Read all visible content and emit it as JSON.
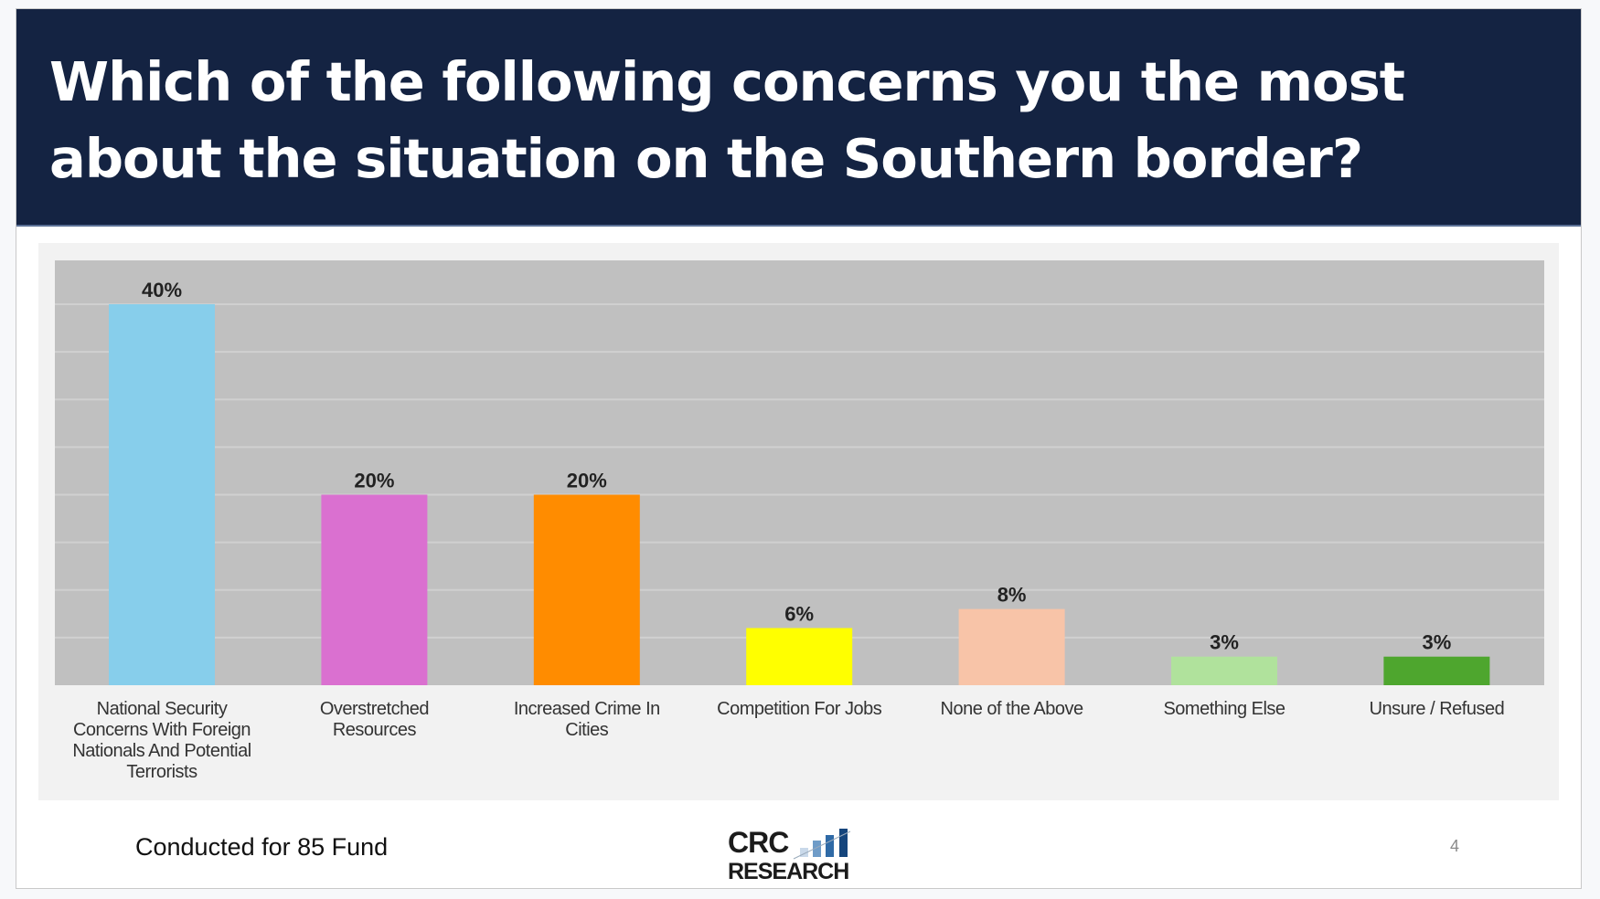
{
  "slide": {
    "title_line1": "Which of the following concerns you the most",
    "title_line2": "about the situation on the Southern border?",
    "footer_note": "Conducted for 85 Fund",
    "page_number": "4",
    "logo": {
      "line1": "CRC",
      "line2": "RESEARCH"
    }
  },
  "chart_data": {
    "type": "bar",
    "title": "Which of the following concerns you the most about the situation on the Southern border?",
    "categories": [
      "National Security Concerns With Foreign Nationals And Potential Terrorists",
      "Overstretched Resources",
      "Increased Crime In Cities",
      "Competition For Jobs",
      "None of the Above",
      "Something Else",
      "Unsure / Refused"
    ],
    "category_lines": [
      [
        "National Security",
        "Concerns With Foreign",
        "Nationals And Potential",
        "Terrorists"
      ],
      [
        "Overstretched",
        "Resources"
      ],
      [
        "Increased Crime In",
        "Cities"
      ],
      [
        "Competition For Jobs"
      ],
      [
        "None of the Above"
      ],
      [
        "Something Else"
      ],
      [
        "Unsure / Refused"
      ]
    ],
    "values": [
      40,
      20,
      20,
      6,
      8,
      3,
      3
    ],
    "data_labels": [
      "40%",
      "20%",
      "20%",
      "6%",
      "8%",
      "3%",
      "3%"
    ],
    "colors": [
      "#87ceeb",
      "#da70d0",
      "#ff8c00",
      "#ffff00",
      "#f8c4a8",
      "#b0e29c",
      "#4ea62e"
    ],
    "xlabel": "",
    "ylabel": "",
    "ylim": [
      0,
      44.6
    ],
    "grid": true,
    "grid_step": 5,
    "legend": "none"
  },
  "colors": {
    "header": "#142342",
    "plot_bg": "#c0c0c0",
    "panel_bg": "#f2f2f2"
  }
}
